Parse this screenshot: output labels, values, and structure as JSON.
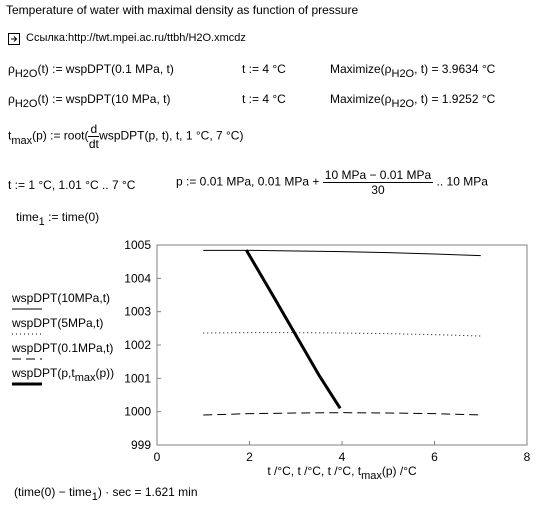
{
  "title": "Temperature of water with maximal density as function of pressure",
  "link": "Ссылка:http://twt.mpei.ac.ru/ttbh/H2O.xmcdz",
  "eq1": {
    "lhs_a": "ρ",
    "lhs_sub": "H2O",
    "lhs_b": "(t) := wspDPT(0.1 MPa, t)",
    "assign": "t := 4 °C",
    "res_a": "Maximize(",
    "res_b": "ρ",
    "res_sub": "H2O",
    "res_c": ", t) = 3.9634 °C"
  },
  "eq2": {
    "lhs_a": "ρ",
    "lhs_sub": "H2O",
    "lhs_b": "(t) := wspDPT(10 MPa, t)",
    "assign": "t := 4 °C",
    "res_a": "Maximize(",
    "res_b": "ρ",
    "res_sub": "H2O",
    "res_c": ", t) = 1.9252 °C"
  },
  "eq3": {
    "a": "t",
    "sub": "max",
    "b": "(p) := root(",
    "num": "d",
    "den": "dt",
    "c": "wspDPT(p, t), t, 1 °C, 7 °C)"
  },
  "eq4": {
    "t_range": "t := 1 °C, 1.01 °C .. 7 °C",
    "p_a": "p := 0.01 MPa, 0.01 MPa +",
    "num": "10 MPa − 0.01 MPa",
    "den": "30",
    "p_b": ".. 10 MPa"
  },
  "eq5": {
    "a": "time",
    "sub": "1",
    "b": " := time(0)"
  },
  "eq6": {
    "a": "(time(0) − time",
    "sub": "1",
    "b": ") · sec = 1.621 min"
  },
  "chart": {
    "type": "line",
    "xlim": [
      0,
      8
    ],
    "ylim": [
      999,
      1005
    ],
    "xticks": [
      0,
      2,
      4,
      6,
      8
    ],
    "yticks": [
      999,
      1000,
      1001,
      1002,
      1003,
      1004,
      1005
    ],
    "xlabel": [
      "t /°C, t /°C, t /°C, t",
      "max",
      "(p) /°C"
    ],
    "series": [
      {
        "label": [
          "wspDPT(10MPa,t)"
        ],
        "style": "solid",
        "color": "#000000",
        "x": [
          1,
          2,
          3,
          4,
          5,
          6,
          7
        ],
        "values": [
          1004.84,
          1004.84,
          1004.82,
          1004.8,
          1004.77,
          1004.73,
          1004.68
        ]
      },
      {
        "label": [
          "wspDPT(5MPa,t)"
        ],
        "style": "dotted",
        "color": "#000000",
        "x": [
          1,
          2,
          3,
          4,
          5,
          6,
          7
        ],
        "values": [
          1002.36,
          1002.37,
          1002.37,
          1002.36,
          1002.34,
          1002.31,
          1002.27
        ]
      },
      {
        "label": [
          "wspDPT(0.1MPa,t)"
        ],
        "style": "dashed",
        "color": "#000000",
        "x": [
          1,
          2,
          3,
          4,
          5,
          6,
          7
        ],
        "values": [
          999.9,
          999.94,
          999.96,
          999.97,
          999.96,
          999.94,
          999.9
        ]
      },
      {
        "label": [
          "wspDPT(p,t",
          "max",
          "(p))"
        ],
        "style": "bold",
        "color": "#000000",
        "x": [
          3.96,
          3.5,
          3.0,
          2.5,
          1.93
        ],
        "values": [
          1000.1,
          1001.1,
          1002.3,
          1003.5,
          1004.85
        ]
      }
    ]
  }
}
